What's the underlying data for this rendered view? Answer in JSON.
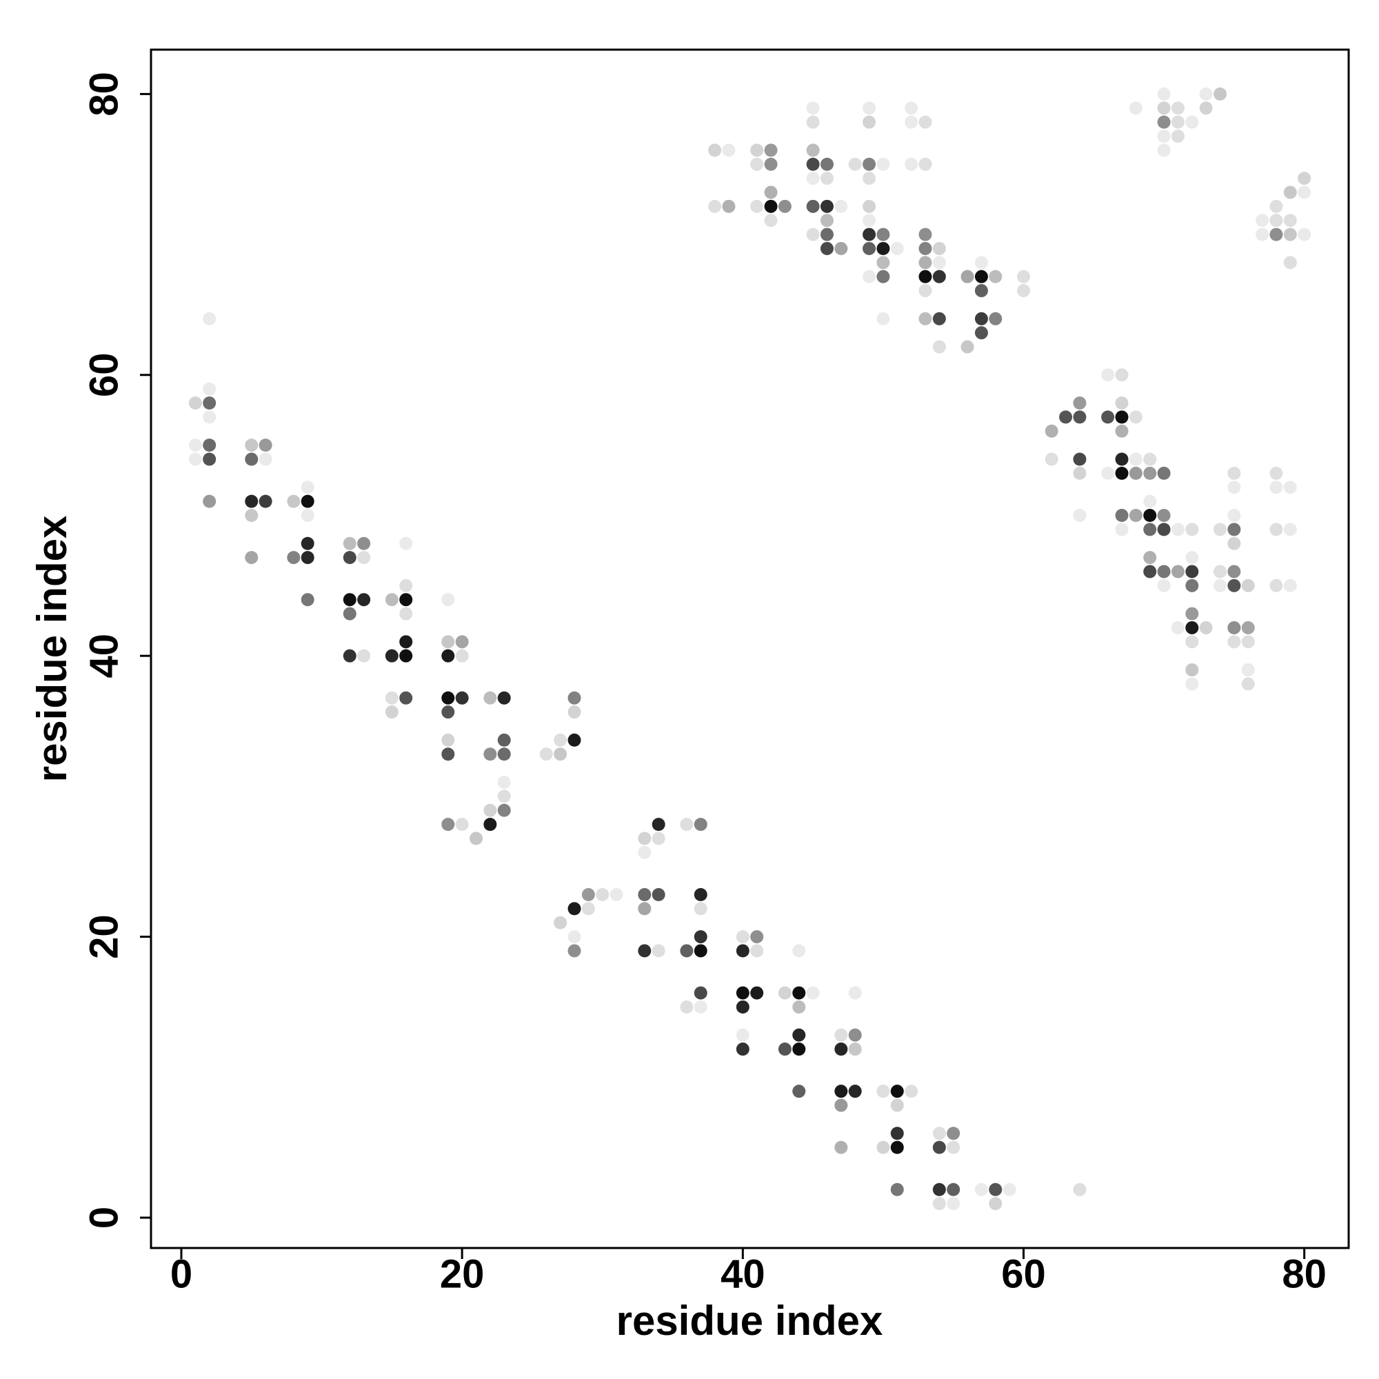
{
  "chart_data": {
    "type": "scatter",
    "x_label": "residue index",
    "y_label": "residue index",
    "xlim": [
      -2.16,
      83.16
    ],
    "ylim": [
      -2.16,
      83.16
    ],
    "xticks": [
      0,
      20,
      40,
      60,
      80
    ],
    "yticks": [
      0,
      20,
      40,
      60,
      80
    ],
    "x": [
      1,
      2,
      2,
      2,
      2,
      1,
      2,
      1,
      2,
      2,
      5,
      6,
      5,
      6,
      5,
      6,
      5,
      5,
      8,
      9,
      9,
      9,
      8,
      9,
      9,
      9,
      12,
      13,
      12,
      13,
      12,
      13,
      12,
      12,
      13,
      15,
      16,
      16,
      16,
      16,
      15,
      16,
      16,
      15,
      15,
      16,
      19,
      19,
      20,
      19,
      20,
      19,
      20,
      19,
      19,
      19,
      19,
      20,
      21,
      22,
      22,
      23,
      23,
      23,
      22,
      23,
      22,
      23,
      23,
      26,
      27,
      27,
      28,
      28,
      28,
      27,
      28,
      28,
      29,
      29,
      30,
      31,
      28,
      33,
      34,
      34,
      33,
      33,
      34,
      33,
      33,
      34,
      36,
      37,
      37,
      37,
      36,
      37,
      37,
      36,
      37,
      37,
      40,
      41,
      40,
      41,
      40,
      41,
      40,
      40,
      40,
      43,
      44,
      45,
      44,
      44,
      43,
      44,
      44,
      44,
      47,
      48,
      47,
      48,
      48,
      47,
      48,
      47,
      47,
      50,
      51,
      52,
      51,
      50,
      51,
      51,
      51,
      54,
      55,
      54,
      55,
      54,
      55,
      54,
      55,
      57,
      58,
      59,
      58,
      64,
      38,
      39,
      38,
      39,
      41,
      42,
      41,
      42,
      42,
      41,
      42,
      43,
      42,
      45,
      45,
      45,
      45,
      46,
      45,
      46,
      45,
      46,
      47,
      46,
      45,
      46,
      46,
      47,
      49,
      49,
      48,
      49,
      50,
      49,
      49,
      49,
      49,
      50,
      49,
      50,
      51,
      50,
      49,
      50,
      50,
      52,
      52,
      53,
      52,
      53,
      53,
      53,
      54,
      53,
      53,
      54,
      54,
      53,
      53,
      54,
      54,
      56,
      57,
      57,
      58,
      57,
      56,
      57,
      58,
      57,
      60,
      60,
      62,
      62,
      63,
      64,
      64,
      64,
      64,
      64,
      66,
      67,
      66,
      67,
      68,
      67,
      67,
      67,
      68,
      66,
      67,
      68,
      69,
      69,
      70,
      67,
      68,
      69,
      70,
      69,
      67,
      69,
      70,
      71,
      72,
      69,
      69,
      70,
      71,
      72,
      72,
      72,
      70,
      71,
      72,
      72,
      73,
      72,
      72,
      72,
      74,
      75,
      75,
      75,
      75,
      75,
      74,
      75,
      74,
      75,
      76,
      75,
      76,
      75,
      76,
      76,
      76,
      78,
      79,
      78,
      78,
      79,
      78,
      79,
      68,
      70,
      70,
      71,
      70,
      71,
      72,
      70,
      71,
      70,
      73,
      74,
      73,
      77,
      77,
      78,
      79,
      78,
      78,
      79,
      80,
      79,
      79,
      80,
      80
    ],
    "y": [
      58,
      58,
      59,
      57,
      64,
      55,
      55,
      54,
      54,
      51,
      55,
      55,
      54,
      54,
      51,
      51,
      50,
      47,
      51,
      51,
      52,
      50,
      47,
      48,
      47,
      44,
      48,
      48,
      47,
      47,
      44,
      44,
      43,
      40,
      40,
      44,
      44,
      45,
      43,
      48,
      40,
      40,
      41,
      37,
      36,
      37,
      44,
      41,
      41,
      40,
      40,
      37,
      37,
      36,
      34,
      33,
      28,
      28,
      27,
      28,
      29,
      29,
      30,
      31,
      37,
      37,
      33,
      33,
      34,
      33,
      33,
      34,
      34,
      37,
      36,
      21,
      22,
      20,
      22,
      23,
      23,
      23,
      19,
      27,
      28,
      27,
      26,
      23,
      23,
      22,
      19,
      19,
      28,
      28,
      23,
      22,
      19,
      19,
      20,
      15,
      16,
      15,
      20,
      20,
      19,
      19,
      16,
      16,
      15,
      13,
      12,
      16,
      16,
      16,
      15,
      19,
      12,
      12,
      13,
      9,
      13,
      13,
      12,
      12,
      16,
      9,
      9,
      8,
      5,
      9,
      9,
      9,
      8,
      5,
      5,
      6,
      2,
      6,
      6,
      5,
      5,
      2,
      2,
      1,
      1,
      2,
      2,
      2,
      1,
      2,
      76,
      76,
      72,
      72,
      76,
      76,
      75,
      75,
      73,
      72,
      72,
      72,
      71,
      79,
      78,
      76,
      75,
      75,
      74,
      74,
      72,
      72,
      72,
      71,
      70,
      70,
      69,
      69,
      79,
      78,
      75,
      75,
      75,
      74,
      72,
      71,
      70,
      70,
      69,
      69,
      69,
      68,
      67,
      67,
      64,
      79,
      78,
      78,
      75,
      75,
      70,
      69,
      69,
      68,
      67,
      67,
      68,
      66,
      64,
      64,
      62,
      67,
      67,
      68,
      67,
      66,
      62,
      64,
      64,
      63,
      67,
      66,
      56,
      54,
      57,
      57,
      58,
      54,
      53,
      50,
      60,
      60,
      57,
      57,
      57,
      58,
      56,
      54,
      54,
      53,
      53,
      53,
      53,
      54,
      53,
      50,
      50,
      50,
      50,
      51,
      49,
      49,
      49,
      49,
      49,
      47,
      46,
      46,
      46,
      46,
      47,
      45,
      45,
      42,
      42,
      43,
      42,
      41,
      39,
      38,
      49,
      49,
      48,
      50,
      53,
      52,
      46,
      46,
      45,
      45,
      45,
      42,
      42,
      41,
      41,
      39,
      38,
      53,
      52,
      52,
      49,
      49,
      45,
      45,
      79,
      80,
      79,
      79,
      78,
      78,
      78,
      77,
      77,
      76,
      80,
      80,
      79,
      70,
      71,
      71,
      71,
      72,
      70,
      70,
      70,
      68,
      73,
      73,
      74
    ],
    "shades": [
      0.15,
      0.6,
      0.05,
      0.05,
      0.05,
      0.05,
      0.6,
      0.05,
      0.7,
      0.4,
      0.2,
      0.4,
      0.6,
      0.05,
      0.9,
      0.8,
      0.2,
      0.35,
      0.2,
      1,
      0.05,
      0.05,
      0.5,
      0.9,
      0.9,
      0.55,
      0.25,
      0.45,
      0.75,
      0.1,
      1,
      0.9,
      0.55,
      0.85,
      0.1,
      0.25,
      1,
      0.1,
      0.1,
      0.05,
      0.9,
      1,
      0.95,
      0.1,
      0.15,
      0.7,
      0.05,
      0.2,
      0.35,
      0.95,
      0.1,
      1,
      0.85,
      0.7,
      0.15,
      0.7,
      0.45,
      0.1,
      0.2,
      0.95,
      0.15,
      0.5,
      0.1,
      0.05,
      0.25,
      0.9,
      0.45,
      0.6,
      0.65,
      0.1,
      0.2,
      0.1,
      0.95,
      0.5,
      0.15,
      0.15,
      0.95,
      0.05,
      0.1,
      0.4,
      0.1,
      0.05,
      0.45,
      0.15,
      0.9,
      0.1,
      0.05,
      0.6,
      0.7,
      0.35,
      0.85,
      0.1,
      0.1,
      0.5,
      0.9,
      0.1,
      0.65,
      1,
      0.85,
      0.1,
      0.75,
      0.05,
      0.1,
      0.45,
      0.9,
      0.1,
      1,
      0.95,
      0.9,
      0.05,
      0.85,
      0.15,
      1,
      0.05,
      0.25,
      0.05,
      0.7,
      1,
      0.9,
      0.65,
      0.1,
      0.45,
      0.9,
      0.2,
      0.05,
      0.95,
      0.9,
      0.4,
      0.3,
      0.1,
      1,
      0.1,
      0.15,
      0.15,
      1,
      0.85,
      0.55,
      0.1,
      0.45,
      0.75,
      0.1,
      0.85,
      0.65,
      0.1,
      0.05,
      0.05,
      0.7,
      0.05,
      0.15,
      0.1,
      0.15,
      0.05,
      0.1,
      0.3,
      0.15,
      0.4,
      0.1,
      0.45,
      0.3,
      0.1,
      1,
      0.45,
      0.1,
      0.05,
      0.1,
      0.25,
      0.75,
      0.55,
      0.05,
      0.1,
      0.65,
      0.85,
      0.05,
      0.25,
      0.1,
      0.6,
      0.75,
      0.35,
      0.05,
      0.15,
      0.1,
      0.5,
      0.05,
      0.1,
      0.15,
      0.05,
      0.85,
      0.5,
      0.65,
      0.95,
      0.05,
      0.25,
      0.05,
      0.55,
      0.05,
      0.05,
      0.05,
      0.1,
      0.05,
      0.1,
      0.45,
      0.5,
      0.15,
      0.3,
      1,
      0.85,
      0.05,
      0.1,
      0.25,
      0.75,
      0.1,
      0.35,
      1,
      0.05,
      0.25,
      0.65,
      0.2,
      0.8,
      0.5,
      0.7,
      0.1,
      0.1,
      0.3,
      0.1,
      0.7,
      0.7,
      0.4,
      0.75,
      0.15,
      0.05,
      0.05,
      0.1,
      0.7,
      1,
      0.1,
      0.15,
      0.3,
      0.9,
      0.05,
      0.05,
      1,
      0.4,
      0.4,
      0.1,
      0.55,
      0.55,
      0.35,
      1,
      0.45,
      0.05,
      0.05,
      0.6,
      0.75,
      0.05,
      0.1,
      0.3,
      0.75,
      0.55,
      0.35,
      0.8,
      0.05,
      0.55,
      0.05,
      0.05,
      0.95,
      0.4,
      0.15,
      0.1,
      0.2,
      0.05,
      0.1,
      0.55,
      0.15,
      0.05,
      0.1,
      0.05,
      0.1,
      0.45,
      0.05,
      0.7,
      0.15,
      0.45,
      0.35,
      0.1,
      0.1,
      0.05,
      0.1,
      0.1,
      0.05,
      0.05,
      0.1,
      0.05,
      0.1,
      0.05,
      0.05,
      0.05,
      0.15,
      0.1,
      0.45,
      0.1,
      0.05,
      0.05,
      0.1,
      0.05,
      0.05,
      0.2,
      0.15,
      0.05,
      0.05,
      0.1,
      0.1,
      0.1,
      0.45,
      0.2,
      0.05,
      0.1,
      0.2,
      0.05,
      0.15
    ]
  }
}
